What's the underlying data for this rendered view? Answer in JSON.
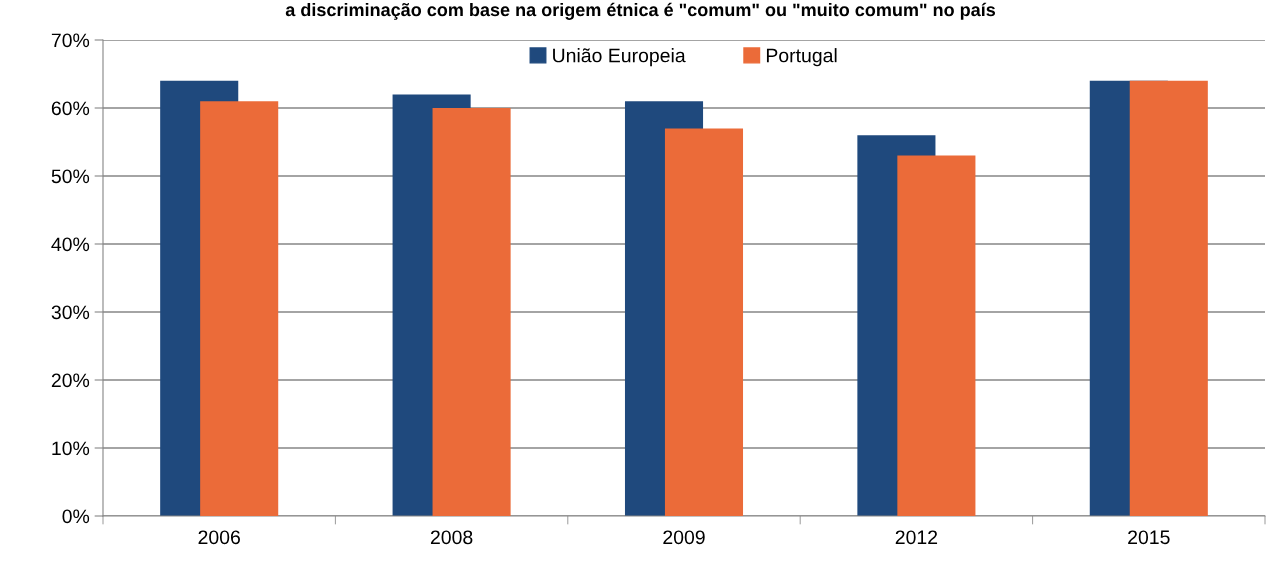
{
  "chart_data": {
    "type": "bar",
    "title": "a discriminação com base na origem étnica é \"comum\" ou \"muito comum\" no país",
    "categories": [
      "2006",
      "2008",
      "2009",
      "2012",
      "2015"
    ],
    "series": [
      {
        "name": "União Europeia",
        "color": "#1f497d",
        "values": [
          64,
          62,
          61,
          56,
          64
        ]
      },
      {
        "name": "Portugal",
        "color": "#eb6b39",
        "values": [
          61,
          60,
          57,
          53,
          64
        ]
      }
    ],
    "ylim": [
      0,
      70
    ],
    "yticks": [
      {
        "value": 0,
        "label": "0%"
      },
      {
        "value": 10,
        "label": "10%"
      },
      {
        "value": 20,
        "label": "20%"
      },
      {
        "value": 30,
        "label": "30%"
      },
      {
        "value": 40,
        "label": "40%"
      },
      {
        "value": 50,
        "label": "50%"
      },
      {
        "value": 60,
        "label": "60%"
      },
      {
        "value": 70,
        "label": "70%"
      }
    ],
    "grid": "y",
    "legend": "top"
  }
}
